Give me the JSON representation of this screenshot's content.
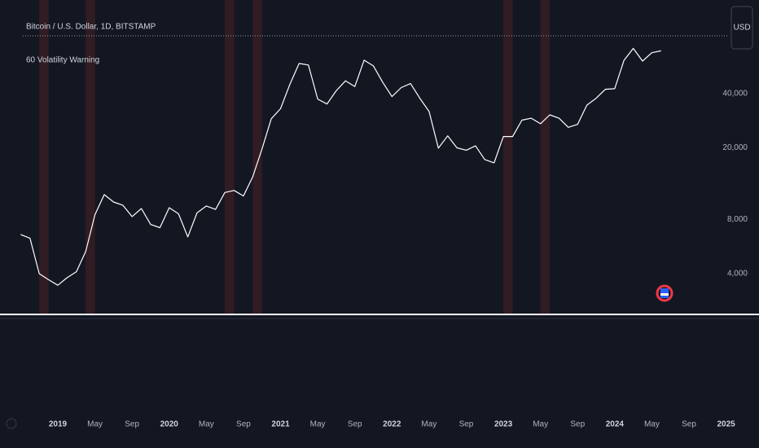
{
  "chart_data": {
    "type": "line",
    "title": "Bitcoin / U.S. Dollar, 1D, BITSTAMP",
    "subtitle": "60 Volatility Warning",
    "currency": "USD",
    "log_scale": true,
    "grid": false,
    "x": [
      "2018-09",
      "2018-10",
      "2018-11",
      "2018-12",
      "2019-01",
      "2019-02",
      "2019-03",
      "2019-04",
      "2019-05",
      "2019-06",
      "2019-07",
      "2019-08",
      "2019-09",
      "2019-10",
      "2019-11",
      "2019-12",
      "2020-01",
      "2020-02",
      "2020-03",
      "2020-04",
      "2020-05",
      "2020-06",
      "2020-07",
      "2020-08",
      "2020-09",
      "2020-10",
      "2020-11",
      "2020-12",
      "2021-01",
      "2021-02",
      "2021-03",
      "2021-04",
      "2021-05",
      "2021-06",
      "2021-07",
      "2021-08",
      "2021-09",
      "2021-10",
      "2021-11",
      "2021-12",
      "2022-01",
      "2022-02",
      "2022-03",
      "2022-04",
      "2022-05",
      "2022-06",
      "2022-07",
      "2022-08",
      "2022-09",
      "2022-10",
      "2022-11",
      "2022-12",
      "2023-01",
      "2023-02",
      "2023-03",
      "2023-04",
      "2023-05",
      "2023-06",
      "2023-07",
      "2023-08",
      "2023-09",
      "2023-10",
      "2023-11",
      "2023-12",
      "2024-01",
      "2024-02",
      "2024-03",
      "2024-04",
      "2024-05",
      "2024-06"
    ],
    "series": [
      {
        "name": "Bitcoin / U.S. Dollar",
        "color": "#ffffff",
        "values": [
          6600,
          6300,
          4000,
          3700,
          3450,
          3800,
          4100,
          5300,
          8500,
          11000,
          10000,
          9600,
          8300,
          9200,
          7500,
          7200,
          9300,
          8600,
          6400,
          8700,
          9500,
          9100,
          11300,
          11600,
          10800,
          13800,
          19700,
          29000,
          33000,
          45000,
          58800,
          57700,
          37300,
          35000,
          41500,
          47100,
          43800,
          61300,
          57000,
          46300,
          38500,
          43200,
          45500,
          37700,
          31800,
          19900,
          23300,
          20000,
          19400,
          20500,
          17200,
          16500,
          23100,
          23100,
          28500,
          29200,
          27200,
          30500,
          29200,
          26000,
          27000,
          34500,
          37700,
          42300,
          42600,
          61200,
          71300,
          60600,
          67500,
          69100
        ]
      }
    ],
    "warning_periods": [
      {
        "start": "2018-11",
        "end": "2018-12"
      },
      {
        "start": "2019-04",
        "end": "2019-05"
      },
      {
        "start": "2020-07",
        "end": "2020-08"
      },
      {
        "start": "2020-10",
        "end": "2020-11"
      },
      {
        "start": "2023-01",
        "end": "2023-02"
      },
      {
        "start": "2023-05",
        "end": "2023-06"
      }
    ],
    "warning_color": "#3a1e25",
    "ylim": [
      2400,
      87300
    ],
    "yticks": [
      {
        "value": 4000,
        "label": "4,000"
      },
      {
        "value": 8000,
        "label": "8,000"
      },
      {
        "value": 20000,
        "label": "20,000"
      },
      {
        "value": 40000,
        "label": "40,000"
      }
    ],
    "xlim": [
      "2018-08",
      "2025-02"
    ],
    "xticks": [
      {
        "value": "2019-01",
        "label": "2019"
      },
      {
        "value": "2019-05",
        "label": "May"
      },
      {
        "value": "2019-09",
        "label": "Sep"
      },
      {
        "value": "2020-01",
        "label": "2020"
      },
      {
        "value": "2020-05",
        "label": "May"
      },
      {
        "value": "2020-09",
        "label": "Sep"
      },
      {
        "value": "2021-01",
        "label": "2021"
      },
      {
        "value": "2021-05",
        "label": "May"
      },
      {
        "value": "2021-09",
        "label": "Sep"
      },
      {
        "value": "2022-01",
        "label": "2022"
      },
      {
        "value": "2022-05",
        "label": "May"
      },
      {
        "value": "2022-09",
        "label": "Sep"
      },
      {
        "value": "2023-01",
        "label": "2023"
      },
      {
        "value": "2023-05",
        "label": "May"
      },
      {
        "value": "2023-09",
        "label": "Sep"
      },
      {
        "value": "2024-01",
        "label": "2024"
      },
      {
        "value": "2024-05",
        "label": "May"
      },
      {
        "value": "2024-09",
        "label": "Sep"
      },
      {
        "value": "2025-01",
        "label": "2025"
      }
    ]
  }
}
